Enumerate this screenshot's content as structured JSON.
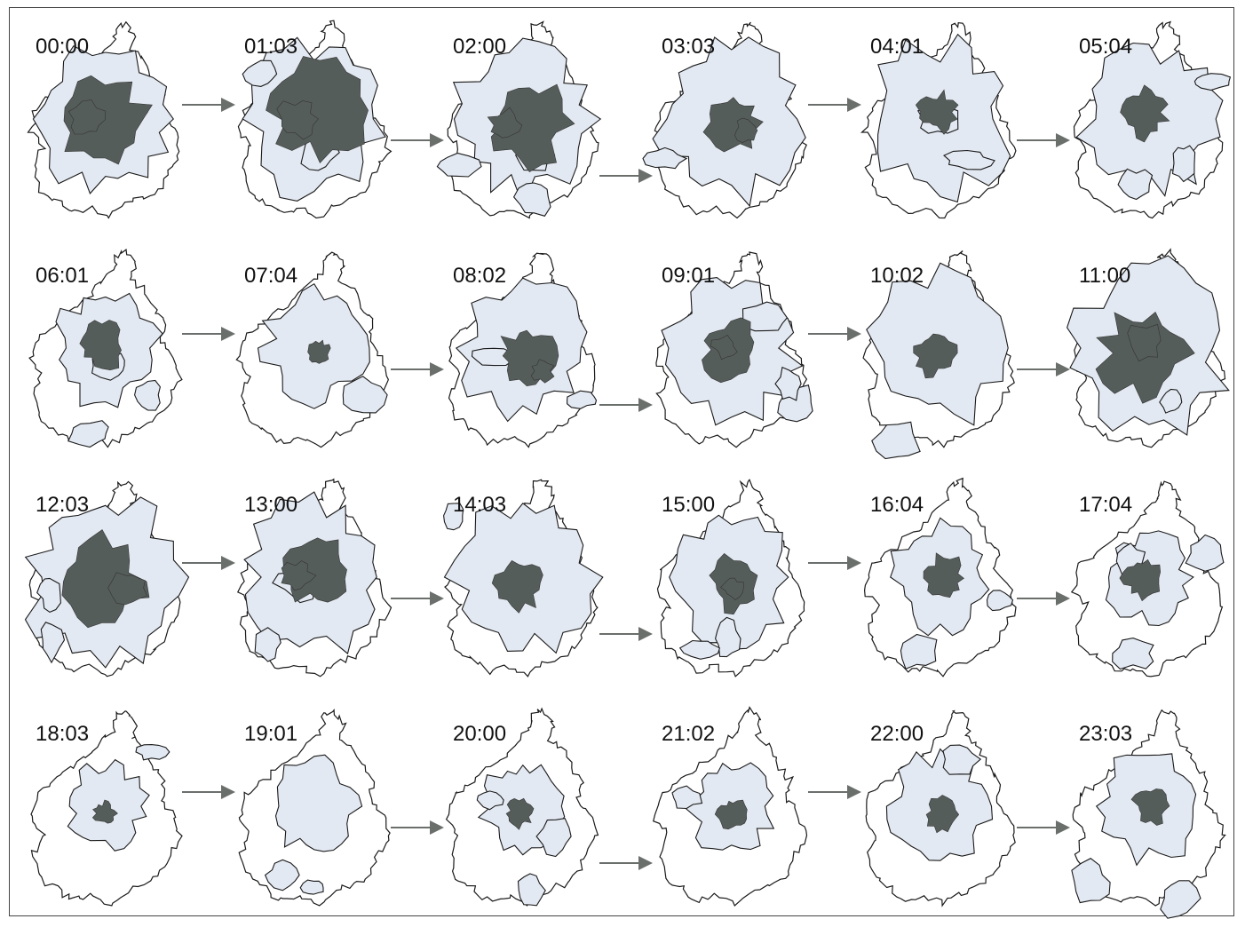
{
  "figure": {
    "panels": [
      {
        "time": "00:00",
        "light": 0.55,
        "dark": 0.3,
        "seed": 1
      },
      {
        "time": "01:03",
        "light": 0.6,
        "dark": 0.38,
        "seed": 2
      },
      {
        "time": "02:00",
        "light": 0.62,
        "dark": 0.26,
        "seed": 3
      },
      {
        "time": "03:03",
        "light": 0.62,
        "dark": 0.12,
        "seed": 4
      },
      {
        "time": "04:01",
        "light": 0.6,
        "dark": 0.06,
        "seed": 5
      },
      {
        "time": "05:04",
        "light": 0.55,
        "dark": 0.1,
        "seed": 6
      },
      {
        "time": "06:01",
        "light": 0.35,
        "dark": 0.1,
        "seed": 7
      },
      {
        "time": "07:04",
        "light": 0.32,
        "dark": 0.02,
        "seed": 8
      },
      {
        "time": "08:02",
        "light": 0.5,
        "dark": 0.12,
        "seed": 9
      },
      {
        "time": "09:01",
        "light": 0.5,
        "dark": 0.14,
        "seed": 10
      },
      {
        "time": "10:02",
        "light": 0.58,
        "dark": 0.08,
        "seed": 11
      },
      {
        "time": "11:00",
        "light": 0.75,
        "dark": 0.32,
        "seed": 12
      },
      {
        "time": "12:03",
        "light": 0.75,
        "dark": 0.3,
        "seed": 13
      },
      {
        "time": "13:00",
        "light": 0.6,
        "dark": 0.22,
        "seed": 14
      },
      {
        "time": "14:03",
        "light": 0.6,
        "dark": 0.1,
        "seed": 15
      },
      {
        "time": "15:00",
        "light": 0.42,
        "dark": 0.12,
        "seed": 16
      },
      {
        "time": "16:04",
        "light": 0.3,
        "dark": 0.08,
        "seed": 17
      },
      {
        "time": "17:04",
        "light": 0.22,
        "dark": 0.06,
        "seed": 18
      },
      {
        "time": "18:03",
        "light": 0.2,
        "dark": 0.02,
        "seed": 19
      },
      {
        "time": "19:01",
        "light": 0.22,
        "dark": 0.01,
        "seed": 20
      },
      {
        "time": "20:00",
        "light": 0.2,
        "dark": 0.03,
        "seed": 21
      },
      {
        "time": "21:02",
        "light": 0.22,
        "dark": 0.04,
        "seed": 22
      },
      {
        "time": "22:00",
        "light": 0.3,
        "dark": 0.05,
        "seed": 23
      },
      {
        "time": "23:03",
        "light": 0.32,
        "dark": 0.05,
        "seed": 24
      }
    ],
    "colors": {
      "outline": "#1a1a1a",
      "light_area": "#e3e9f2",
      "dark_area": "#555d5a",
      "arrow": "#6a6f6c"
    }
  }
}
